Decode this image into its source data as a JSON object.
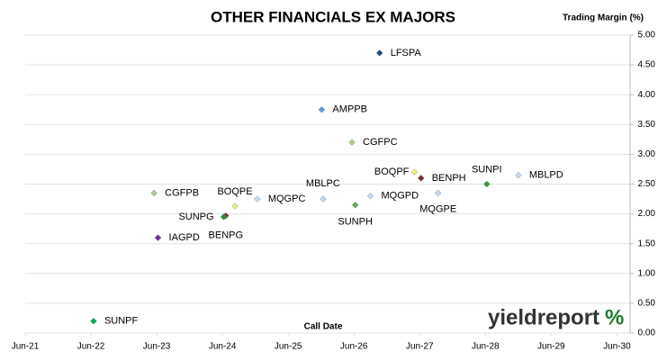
{
  "chart_data": {
    "type": "scatter",
    "title": "OTHER FINANCIALS EX MAJORS",
    "y_label": "Trading Margin (%)",
    "x_label": "Call Date",
    "watermark": "yieldreport",
    "watermark_symbol": "%",
    "xlim": [
      2021.5,
      2030.7
    ],
    "xticks": [
      {
        "value": 2021.5,
        "label": "Jun-21"
      },
      {
        "value": 2022.5,
        "label": "Jun-22"
      },
      {
        "value": 2023.5,
        "label": "Jun-23"
      },
      {
        "value": 2024.5,
        "label": "Jun-24"
      },
      {
        "value": 2025.5,
        "label": "Jun-25"
      },
      {
        "value": 2026.5,
        "label": "Jun-26"
      },
      {
        "value": 2027.5,
        "label": "Jun-27"
      },
      {
        "value": 2028.5,
        "label": "Jun-28"
      },
      {
        "value": 2029.5,
        "label": "Jun-29"
      },
      {
        "value": 2030.5,
        "label": "Jun-30"
      }
    ],
    "ylim": [
      0,
      5
    ],
    "yticks": [
      {
        "value": 0,
        "label": "0.00"
      },
      {
        "value": 0.5,
        "label": "0.50"
      },
      {
        "value": 1,
        "label": "1.00"
      },
      {
        "value": 1.5,
        "label": "1.50"
      },
      {
        "value": 2,
        "label": "2.00"
      },
      {
        "value": 2.5,
        "label": "2.50"
      },
      {
        "value": 3,
        "label": "3.00"
      },
      {
        "value": 3.5,
        "label": "3.50"
      },
      {
        "value": 4,
        "label": "4.00"
      },
      {
        "value": 4.5,
        "label": "4.50"
      },
      {
        "value": 5,
        "label": "5.00"
      }
    ],
    "grid": true,
    "points": [
      {
        "label": "LFSPA",
        "x": 2026.89,
        "y": 4.7,
        "color": "#1f4e79"
      },
      {
        "label": "AMPPB",
        "x": 2026.01,
        "y": 3.75,
        "color": "#5b9bd5"
      },
      {
        "label": "CGFPC",
        "x": 2026.47,
        "y": 3.2,
        "color": "#a9d18e"
      },
      {
        "label": "BOQPF",
        "x": 2027.42,
        "y": 2.7,
        "color": "#f2f26b"
      },
      {
        "label": "BENPH",
        "x": 2027.52,
        "y": 2.6,
        "color": "#7b2c2c"
      },
      {
        "label": "SUNPI",
        "x": 2028.52,
        "y": 2.5,
        "color": "#2ca02c"
      },
      {
        "label": "MBLPD",
        "x": 2029.0,
        "y": 2.65,
        "color": "#c5d9f1"
      },
      {
        "label": "CGFPB",
        "x": 2023.46,
        "y": 2.35,
        "color": "#a9d18e"
      },
      {
        "label": "BOQPE",
        "x": 2024.69,
        "y": 2.13,
        "color": "#e6f07a"
      },
      {
        "label": "MQGPC",
        "x": 2025.03,
        "y": 2.25,
        "color": "#c5d9f1"
      },
      {
        "label": "MBLPC",
        "x": 2026.03,
        "y": 2.25,
        "color": "#c5d9f1"
      },
      {
        "label": "MQGPD",
        "x": 2026.75,
        "y": 2.3,
        "color": "#c5d9f1"
      },
      {
        "label": "MQGPE",
        "x": 2027.78,
        "y": 2.35,
        "color": "#c5d9f1"
      },
      {
        "label": "SUNPH",
        "x": 2026.52,
        "y": 2.15,
        "color": "#6aa84f"
      },
      {
        "label": "BENPG",
        "x": 2024.55,
        "y": 1.97,
        "color": "#7b2c2c"
      },
      {
        "label": "SUNPG",
        "x": 2024.52,
        "y": 1.95,
        "color": "#1e8f3a"
      },
      {
        "label": "IAGPD",
        "x": 2023.52,
        "y": 1.6,
        "color": "#7030a0"
      },
      {
        "label": "SUNPF",
        "x": 2022.54,
        "y": 0.2,
        "color": "#00b050"
      }
    ]
  }
}
